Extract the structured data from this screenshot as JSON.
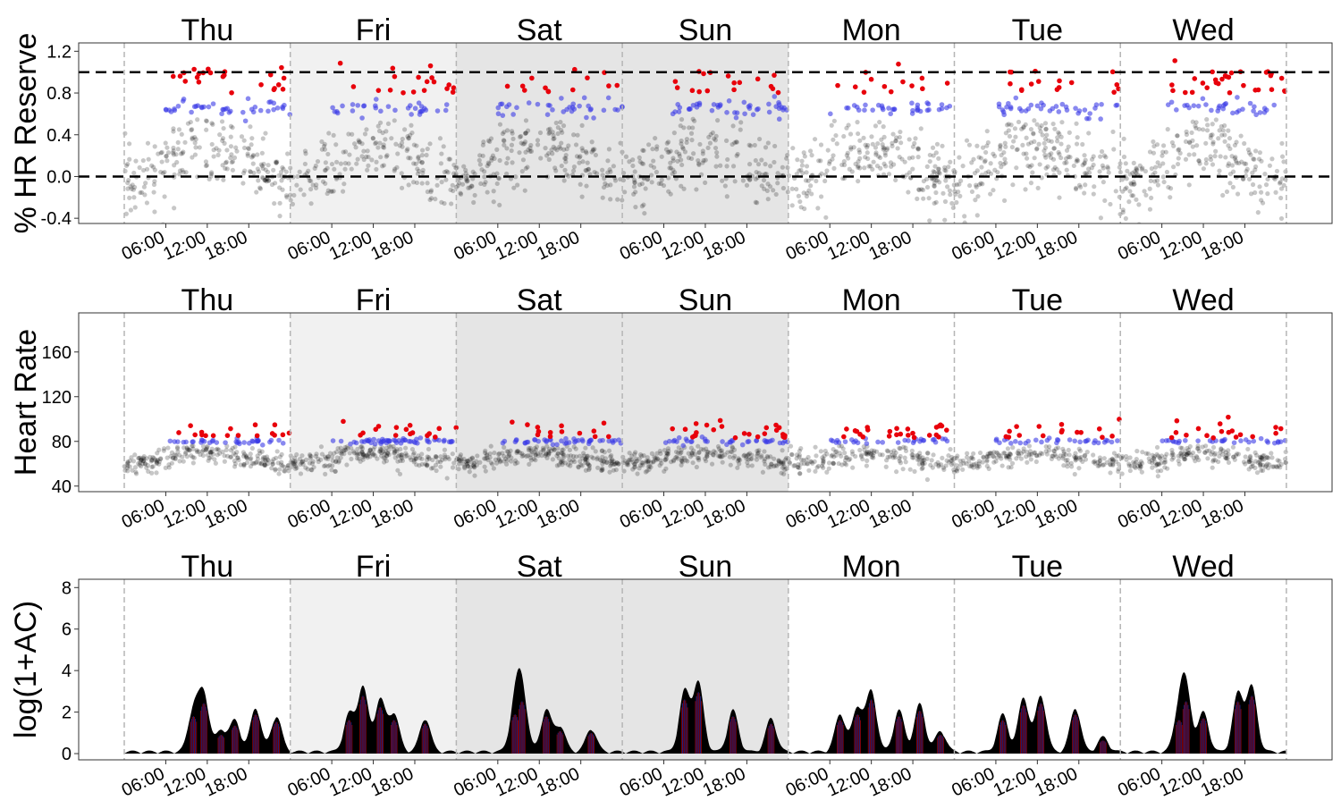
{
  "figure": {
    "colors": {
      "weekend_shade": "#f1f1f1",
      "weekend_shade_dark": "#e5e5e5",
      "baseline_points": "#000000",
      "moderate_points": "#3a3ae6",
      "vigorous_points": "#e8000b",
      "day_divider": "#b5b5b5",
      "threshold_line": "#000000"
    }
  },
  "chart_data": [
    {
      "type": "scatter",
      "title": "",
      "ylabel": "% HR Reserve",
      "xlabel": "",
      "days": [
        "Thu",
        "Fri",
        "Sat",
        "Sun",
        "Mon",
        "Tue",
        "Wed"
      ],
      "x_ticks": [
        "06:00",
        "12:00",
        "18:00"
      ],
      "y_ticks": [
        "-0.4",
        "0.0",
        "0.4",
        "0.8",
        "1.2"
      ],
      "ylim": [
        -0.45,
        1.28
      ],
      "reference_lines": [
        0.0,
        1.0
      ],
      "shaded_days": [
        "Fri",
        "Sat",
        "Sun"
      ],
      "series": [
        {
          "name": "",
          "color": "#000000",
          "description_level": "baseline"
        },
        {
          "name": "",
          "color": "#3a3ae6",
          "approx_level": 0.65
        },
        {
          "name": "",
          "color": "#e8000b",
          "approx_range": [
            0.8,
            1.2
          ]
        }
      ]
    },
    {
      "type": "scatter",
      "title": "",
      "ylabel": "Heart Rate",
      "xlabel": "",
      "days": [
        "Thu",
        "Fri",
        "Sat",
        "Sun",
        "Mon",
        "Tue",
        "Wed"
      ],
      "x_ticks": [
        "06:00",
        "12:00",
        "18:00"
      ],
      "y_ticks": [
        "40",
        "80",
        "120",
        "160"
      ],
      "ylim": [
        35,
        195
      ],
      "shaded_days": [
        "Fri",
        "Sat",
        "Sun"
      ],
      "series": [
        {
          "name": "",
          "color": "#000000",
          "approx_range": [
            45,
            75
          ]
        },
        {
          "name": "",
          "color": "#3a3ae6",
          "approx_level": 80
        },
        {
          "name": "",
          "color": "#e8000b",
          "approx_range": [
            83,
            105
          ]
        }
      ]
    },
    {
      "type": "area",
      "title": "",
      "ylabel": "log(1+AC)",
      "xlabel": "",
      "days": [
        "Thu",
        "Fri",
        "Sat",
        "Sun",
        "Mon",
        "Tue",
        "Wed"
      ],
      "x_ticks": [
        "06:00",
        "12:00",
        "18:00"
      ],
      "y_ticks": [
        "0",
        "2",
        "4",
        "6",
        "8"
      ],
      "ylim": [
        -0.3,
        8.4
      ],
      "shaded_days": [
        "Fri",
        "Sat",
        "Sun"
      ],
      "peaks": [
        {
          "day": "Thu",
          "hour": 10,
          "value": 2.0
        },
        {
          "day": "Thu",
          "hour": 11.5,
          "value": 2.7
        },
        {
          "day": "Thu",
          "hour": 14,
          "value": 1.0
        },
        {
          "day": "Thu",
          "hour": 16,
          "value": 1.5
        },
        {
          "day": "Thu",
          "hour": 19,
          "value": 2.1
        },
        {
          "day": "Thu",
          "hour": 22,
          "value": 1.7
        },
        {
          "day": "Fri",
          "hour": 8.5,
          "value": 1.8
        },
        {
          "day": "Fri",
          "hour": 10.5,
          "value": 3.1
        },
        {
          "day": "Fri",
          "hour": 13,
          "value": 2.5
        },
        {
          "day": "Fri",
          "hour": 15,
          "value": 1.8
        },
        {
          "day": "Fri",
          "hour": 19.5,
          "value": 1.6
        },
        {
          "day": "Sat",
          "hour": 8.5,
          "value": 2.1
        },
        {
          "day": "Sat",
          "hour": 9.5,
          "value": 2.8
        },
        {
          "day": "Sat",
          "hour": 13,
          "value": 2.0
        },
        {
          "day": "Sat",
          "hour": 15,
          "value": 1.2
        },
        {
          "day": "Sat",
          "hour": 19.5,
          "value": 1.1
        },
        {
          "day": "Sun",
          "hour": 9,
          "value": 2.9
        },
        {
          "day": "Sun",
          "hour": 11,
          "value": 3.3
        },
        {
          "day": "Sun",
          "hour": 16,
          "value": 2.0
        },
        {
          "day": "Sun",
          "hour": 21.5,
          "value": 1.6
        },
        {
          "day": "Mon",
          "hour": 7.5,
          "value": 1.8
        },
        {
          "day": "Mon",
          "hour": 10,
          "value": 2.1
        },
        {
          "day": "Mon",
          "hour": 12,
          "value": 2.9
        },
        {
          "day": "Mon",
          "hour": 16,
          "value": 2.0
        },
        {
          "day": "Mon",
          "hour": 19,
          "value": 2.3
        },
        {
          "day": "Mon",
          "hour": 22,
          "value": 1.0
        },
        {
          "day": "Tue",
          "hour": 7,
          "value": 1.8
        },
        {
          "day": "Tue",
          "hour": 10,
          "value": 2.6
        },
        {
          "day": "Tue",
          "hour": 12.5,
          "value": 2.7
        },
        {
          "day": "Tue",
          "hour": 17.5,
          "value": 2.1
        },
        {
          "day": "Tue",
          "hour": 21.5,
          "value": 0.7
        },
        {
          "day": "Wed",
          "hour": 8.5,
          "value": 1.8
        },
        {
          "day": "Wed",
          "hour": 9.5,
          "value": 2.8
        },
        {
          "day": "Wed",
          "hour": 12,
          "value": 1.9
        },
        {
          "day": "Wed",
          "hour": 17,
          "value": 2.8
        },
        {
          "day": "Wed",
          "hour": 19,
          "value": 3.1
        }
      ]
    }
  ]
}
